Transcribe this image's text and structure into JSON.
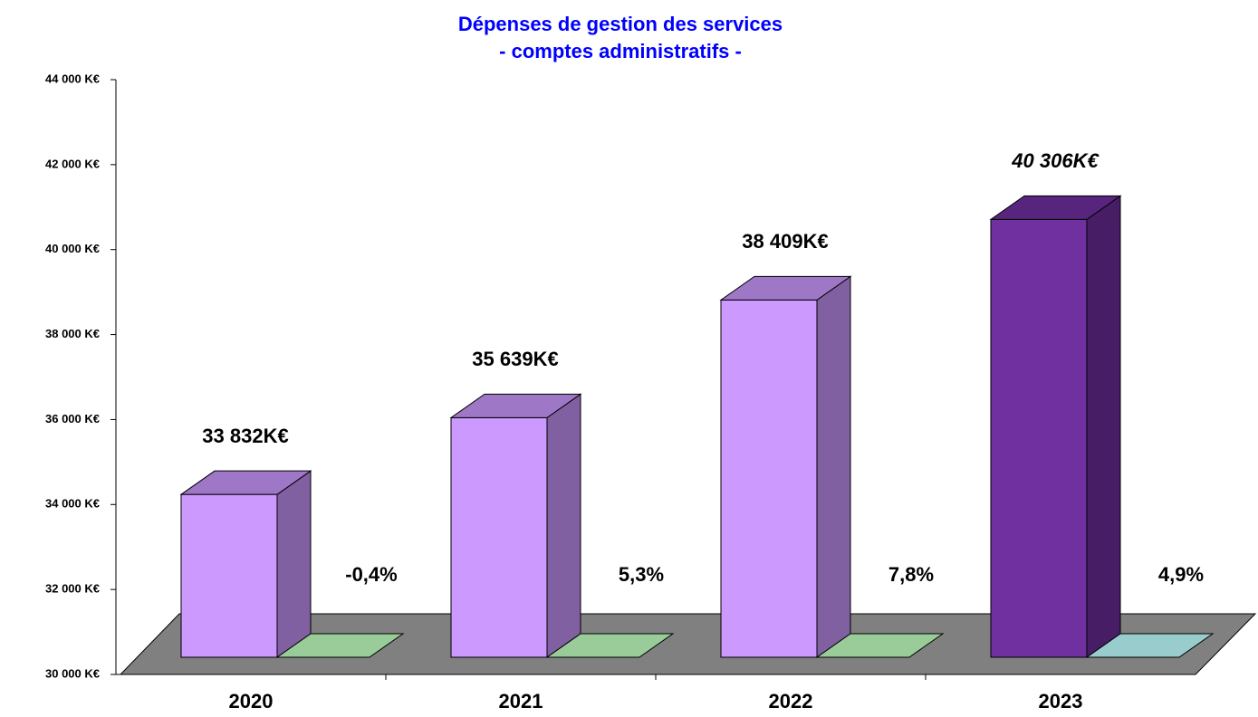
{
  "chart_data": {
    "type": "bar3d",
    "title": [
      "Dépenses de gestion des services",
      "- comptes administratifs -"
    ],
    "categories": [
      "2020",
      "2021",
      "2022",
      "2023"
    ],
    "series": [
      {
        "values": [
          33832,
          35639,
          38409,
          40306
        ],
        "value_labels": [
          "33 832K€",
          "35 639K€",
          "38 409K€",
          "40 306K€"
        ],
        "colors": [
          "#cc99ff",
          "#cc99ff",
          "#cc99ff",
          "#7030a0"
        ]
      },
      {
        "values": [
          -0.4,
          5.3,
          7.8,
          4.9
        ],
        "value_labels": [
          "-0,4%",
          "5,3%",
          "7,8%",
          "4,9%"
        ],
        "colors": [
          "#99cc99",
          "#99cc99",
          "#99cc99",
          "#99cccc"
        ]
      }
    ],
    "ylim": [
      30000,
      44000
    ],
    "yticks": [
      {
        "value": 30000,
        "label": "30 000 K€"
      },
      {
        "value": 32000,
        "label": "32 000 K€"
      },
      {
        "value": 34000,
        "label": "34 000 K€"
      },
      {
        "value": 36000,
        "label": "36 000 K€"
      },
      {
        "value": 38000,
        "label": "38 000 K€"
      },
      {
        "value": 40000,
        "label": "40 000 K€"
      },
      {
        "value": 42000,
        "label": "42 000 K€"
      },
      {
        "value": 44000,
        "label": "44 000 K€"
      }
    ],
    "floor_color": "#808080"
  }
}
